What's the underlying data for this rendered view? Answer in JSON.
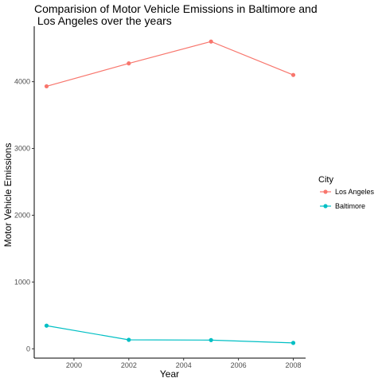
{
  "chart_data": {
    "type": "line",
    "title_line1": "Comparision of Motor Vehicle Emissions in Baltimore and",
    "title_line2": " Los Angeles over the years",
    "xlabel": "Year",
    "ylabel": "Motor Vehicle Emissions",
    "x": [
      1999,
      2002,
      2005,
      2008
    ],
    "xticks": [
      2000,
      2002,
      2004,
      2006,
      2008
    ],
    "yticks": [
      0,
      1000,
      2000,
      3000,
      4000
    ],
    "xlim": [
      1998.55,
      2008.45
    ],
    "ylim": [
      -140,
      4830
    ],
    "grid": false,
    "legend": {
      "title": "City",
      "position": "right"
    },
    "series": [
      {
        "name": "Los Angeles",
        "color": "#F8766D",
        "values": [
          3931,
          4274,
          4601,
          4101
        ]
      },
      {
        "name": "Baltimore",
        "color": "#00BFC4",
        "values": [
          346,
          134,
          130,
          88
        ]
      }
    ]
  }
}
